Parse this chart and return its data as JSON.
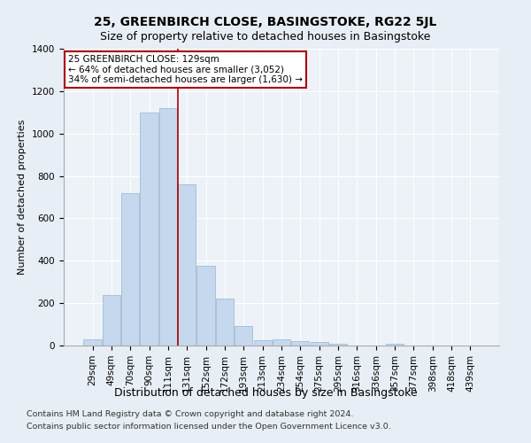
{
  "title1": "25, GREENBIRCH CLOSE, BASINGSTOKE, RG22 5JL",
  "title2": "Size of property relative to detached houses in Basingstoke",
  "xlabel": "Distribution of detached houses by size in Basingstoke",
  "ylabel": "Number of detached properties",
  "categories": [
    "29sqm",
    "49sqm",
    "70sqm",
    "90sqm",
    "111sqm",
    "131sqm",
    "152sqm",
    "172sqm",
    "193sqm",
    "213sqm",
    "234sqm",
    "254sqm",
    "275sqm",
    "295sqm",
    "316sqm",
    "336sqm",
    "357sqm",
    "377sqm",
    "398sqm",
    "418sqm",
    "439sqm"
  ],
  "values": [
    30,
    240,
    720,
    1100,
    1120,
    760,
    375,
    220,
    90,
    25,
    30,
    20,
    18,
    10,
    0,
    0,
    10,
    0,
    0,
    0,
    0
  ],
  "bar_color": "#c5d8ed",
  "bar_edge_color": "#a0bdd4",
  "vline_x": 4.5,
  "vline_color": "#aa0000",
  "annotation_text": "25 GREENBIRCH CLOSE: 129sqm\n← 64% of detached houses are smaller (3,052)\n34% of semi-detached houses are larger (1,630) →",
  "annotation_box_color": "#ffffff",
  "annotation_box_edge": "#aa0000",
  "footnote1": "Contains HM Land Registry data © Crown copyright and database right 2024.",
  "footnote2": "Contains public sector information licensed under the Open Government Licence v3.0.",
  "ylim": [
    0,
    1400
  ],
  "yticks": [
    0,
    200,
    400,
    600,
    800,
    1000,
    1200,
    1400
  ],
  "bg_color": "#e8eef5",
  "plot_bg_color": "#edf2f8",
  "title1_fontsize": 10,
  "title2_fontsize": 9,
  "xlabel_fontsize": 9,
  "ylabel_fontsize": 8,
  "tick_fontsize": 7.5,
  "footnote_fontsize": 6.8
}
